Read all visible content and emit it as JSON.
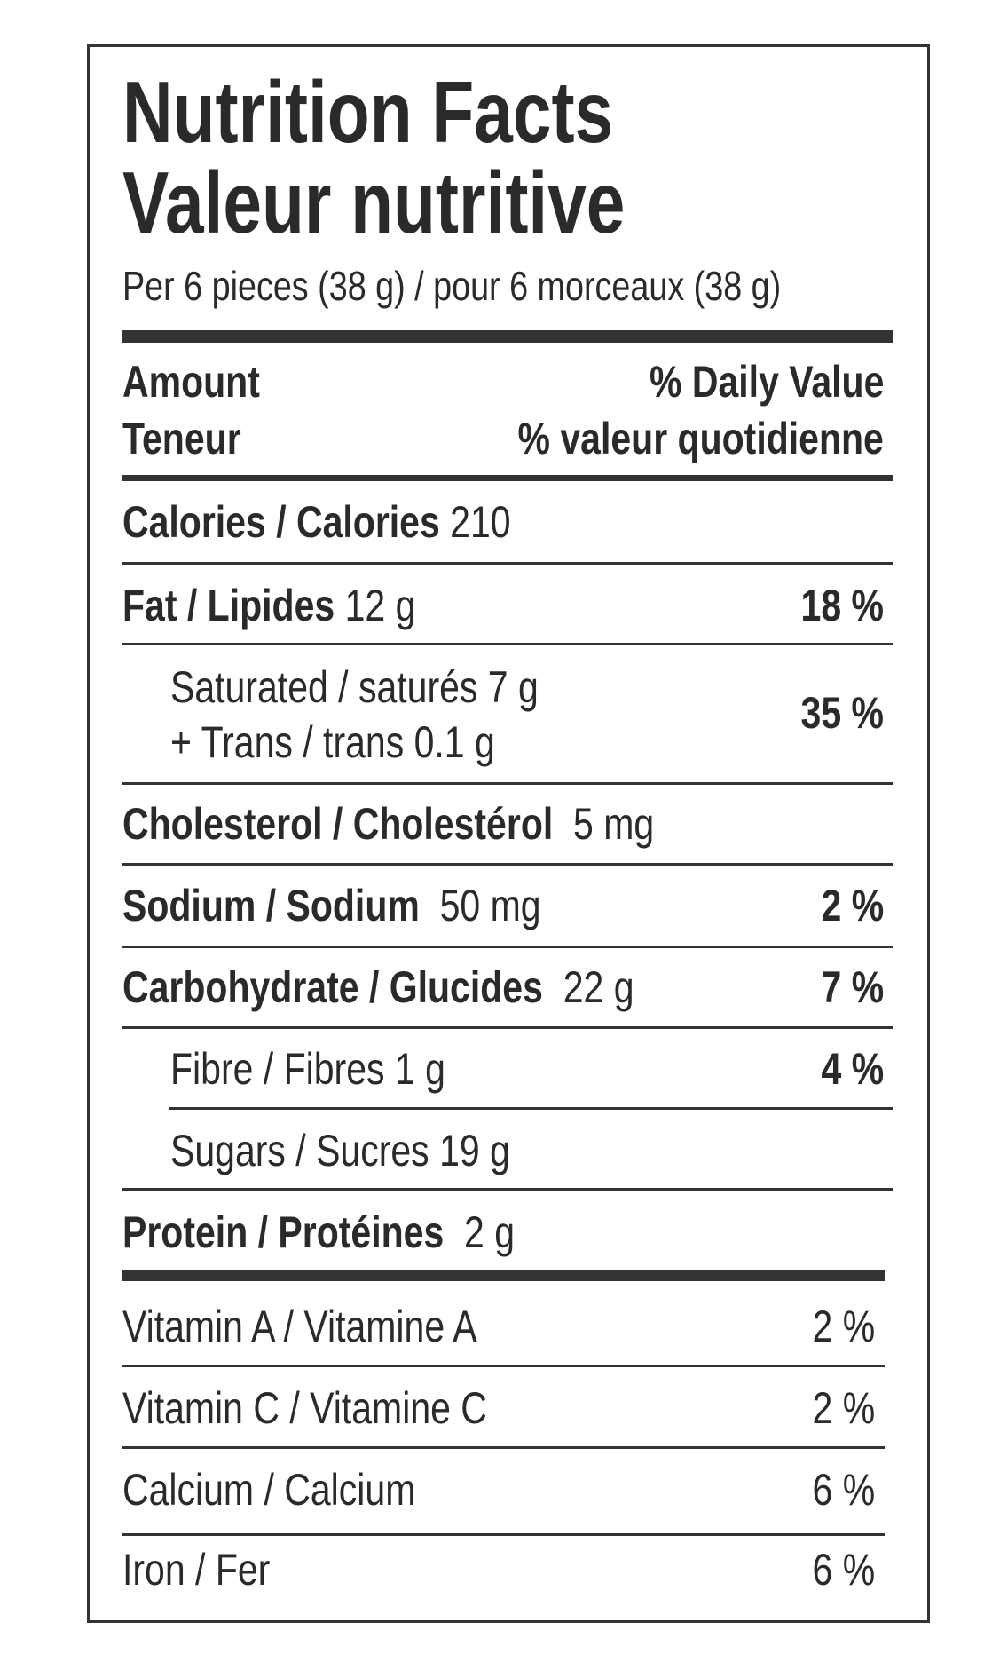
{
  "title_en": "Nutrition Facts",
  "title_fr": "Valeur nutritive",
  "serving": "Per 6 pieces (38 g) / pour 6 morceaux (38 g)",
  "header": {
    "amount": "Amount",
    "teneur": "Teneur",
    "dv": "% Daily Value",
    "dv_fr": "% valeur quotidienne"
  },
  "rows": {
    "calories": {
      "label": "Calories / Calories",
      "value": "210"
    },
    "fat": {
      "label": "Fat / Lipides",
      "value": "12 g",
      "dv": "18 %"
    },
    "saturated": {
      "label": "Saturated / saturés 7 g",
      "trans": "+ Trans / trans 0.1 g",
      "dv": "35 %"
    },
    "cholesterol": {
      "label": "Cholesterol / Cholestérol",
      "value": "5 mg"
    },
    "sodium": {
      "label": "Sodium / Sodium",
      "value": "50 mg",
      "dv": "2 %"
    },
    "carbohydrate": {
      "label": "Carbohydrate / Glucides",
      "value": "22 g",
      "dv": "7 %"
    },
    "fibre": {
      "label": "Fibre / Fibres 1 g",
      "dv": "4 %"
    },
    "sugars": {
      "label": "Sugars / Sucres 19 g"
    },
    "protein": {
      "label": "Protein / Protéines",
      "value": "2 g"
    }
  },
  "vitamins": [
    {
      "label": "Vitamin A / Vitamine A",
      "dv": "2 %"
    },
    {
      "label": "Vitamin C / Vitamine C",
      "dv": "2 %"
    },
    {
      "label": "Calcium / Calcium",
      "dv": "6 %"
    },
    {
      "label": "Iron / Fer",
      "dv": "6 %"
    }
  ]
}
